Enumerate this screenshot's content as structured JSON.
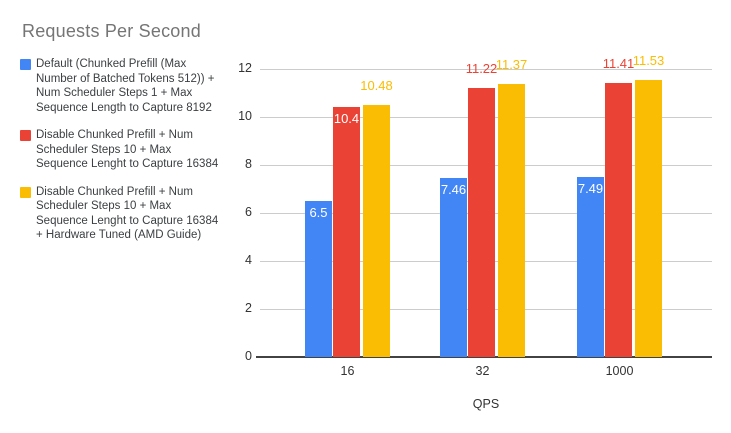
{
  "colors": {
    "background": "#ffffff",
    "title": "#757575",
    "legend_text": "#3c4043",
    "axis_tick_text": "#333333",
    "axis_title_text": "#333333",
    "gridline": "#cccccc",
    "baseline": "#424242",
    "annotation_inside": "#ffffff",
    "series_blue": "#4285f4",
    "series_red": "#ea4335",
    "series_yellow": "#fbbc04"
  },
  "chart_data": {
    "type": "bar",
    "title": "Requests Per Second",
    "xlabel": "QPS",
    "ylabel": "",
    "categories": [
      "16",
      "32",
      "1000"
    ],
    "series": [
      {
        "name": "Default (Chunked Prefill (Max Number of Batched Tokens 512)) + Num Scheduler Steps 1 + Max Sequence Length to Capture 8192",
        "color": "#4285f4",
        "values": [
          6.5,
          7.46,
          7.49
        ],
        "labels": [
          "6.5",
          "7.46",
          "7.49"
        ],
        "label_placement": [
          "inside",
          "inside",
          "inside"
        ]
      },
      {
        "name": "Disable Chunked Prefill + Num Scheduler Steps 10 + Max Sequence Lenght to Capture 16384",
        "color": "#ea4335",
        "values": [
          10.4,
          11.22,
          11.41
        ],
        "labels": [
          "10.4",
          "11.22",
          "11.41"
        ],
        "label_placement": [
          "inside",
          "above",
          "above"
        ]
      },
      {
        "name": "Disable Chunked Prefill + Num Scheduler Steps 10 + Max Sequence Lenght to Capture 16384 + Hardware Tuned (AMD Guide)",
        "color": "#fbbc04",
        "values": [
          10.48,
          11.37,
          11.53
        ],
        "labels": [
          "10.48",
          "11.37",
          "11.53"
        ],
        "label_placement": [
          "above",
          "above",
          "above"
        ]
      }
    ],
    "ylim": [
      0,
      12
    ],
    "yticks": [
      0,
      2,
      4,
      6,
      8,
      10,
      12
    ],
    "grid": true,
    "legend_position": "left"
  }
}
